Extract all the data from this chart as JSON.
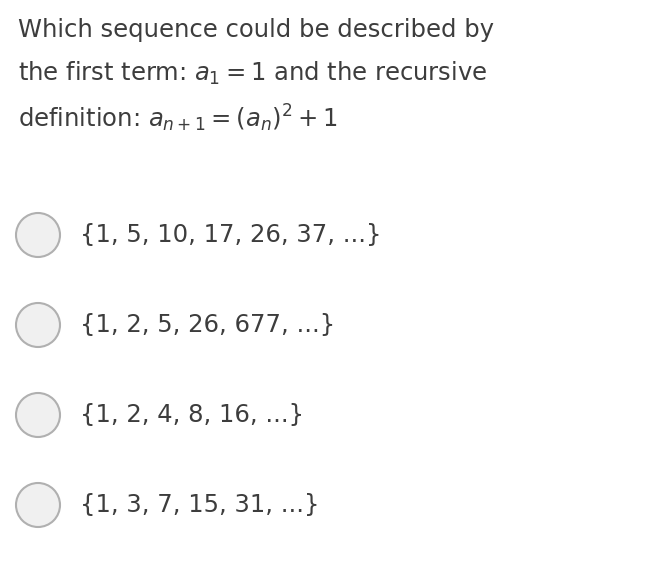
{
  "background_color": "#ffffff",
  "text_color": "#3d3d3d",
  "circle_edge_color": "#b0b0b0",
  "circle_fill_color": "#f0f0f0",
  "title_fontsize": 17.5,
  "option_fontsize": 17.5,
  "fig_width": 6.52,
  "fig_height": 5.85,
  "dpi": 100,
  "options": [
    "{1, 5, 10, 17, 26, 37, ...}",
    "{1, 2, 5, 26, 677, ...}",
    "{1, 2, 4, 8, 16, ...}",
    "{1, 3, 7, 15, 31, ...}"
  ]
}
